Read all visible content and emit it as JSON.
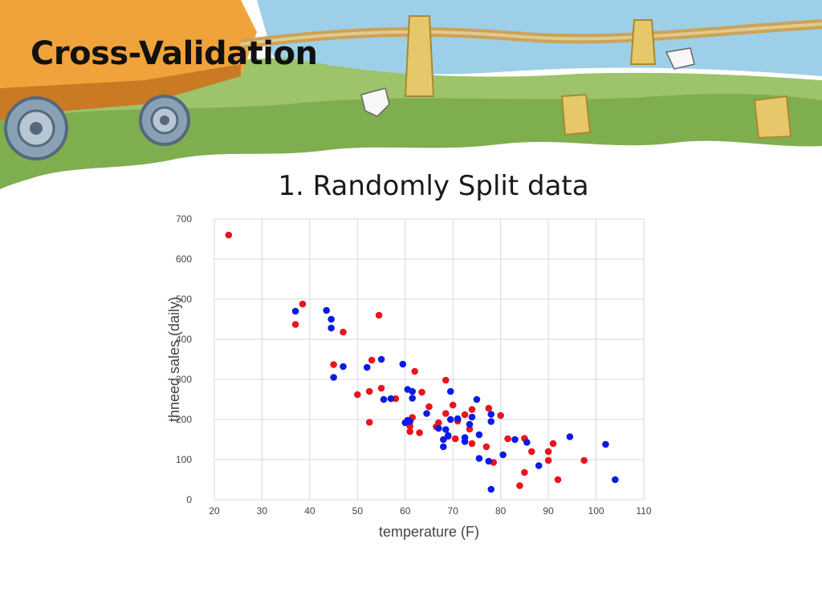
{
  "slide": {
    "title": "Cross-Validation",
    "subtitle": "1. Randomly Split data"
  },
  "colors": {
    "set_a": "#e8141e",
    "set_b": "#0a1be6",
    "grid": "#d9d9d9"
  },
  "chart_data": {
    "type": "scatter",
    "xlabel": "temperature (F)",
    "ylabel": "thneed sales (daily)",
    "xlim": [
      20,
      110
    ],
    "ylim": [
      0,
      700
    ],
    "xticks": [
      20,
      30,
      40,
      50,
      60,
      70,
      80,
      90,
      100,
      110
    ],
    "yticks": [
      0,
      100,
      200,
      300,
      400,
      500,
      600,
      700
    ],
    "grid": true,
    "legend": "none",
    "series": [
      {
        "color": "#e8141e",
        "points": [
          [
            23,
            660
          ],
          [
            37,
            437
          ],
          [
            38.5,
            488
          ],
          [
            45,
            337
          ],
          [
            47,
            418
          ],
          [
            50,
            262
          ],
          [
            52.5,
            270
          ],
          [
            52.5,
            193
          ],
          [
            53,
            348
          ],
          [
            54.5,
            460
          ],
          [
            55,
            278
          ],
          [
            58,
            252
          ],
          [
            61,
            183
          ],
          [
            61,
            170
          ],
          [
            61.5,
            205
          ],
          [
            62,
            320
          ],
          [
            63,
            167
          ],
          [
            63.5,
            268
          ],
          [
            65,
            232
          ],
          [
            66.5,
            182
          ],
          [
            67,
            192
          ],
          [
            68.5,
            298
          ],
          [
            68.5,
            215
          ],
          [
            69,
            158
          ],
          [
            70,
            236
          ],
          [
            70.5,
            152
          ],
          [
            71,
            196
          ],
          [
            72.5,
            212
          ],
          [
            73.5,
            176
          ],
          [
            74,
            225
          ],
          [
            74,
            140
          ],
          [
            77,
            132
          ],
          [
            77.5,
            228
          ],
          [
            78.5,
            93
          ],
          [
            80,
            210
          ],
          [
            81.5,
            152
          ],
          [
            84,
            35
          ],
          [
            85,
            68
          ],
          [
            85,
            153
          ],
          [
            86.5,
            120
          ],
          [
            90,
            120
          ],
          [
            90,
            98
          ],
          [
            91,
            140
          ],
          [
            92,
            50
          ],
          [
            97.5,
            98
          ]
        ]
      },
      {
        "color": "#0a1be6",
        "points": [
          [
            37,
            470
          ],
          [
            43.5,
            472
          ],
          [
            44.5,
            450
          ],
          [
            44.5,
            428
          ],
          [
            45,
            305
          ],
          [
            47,
            332
          ],
          [
            52,
            330
          ],
          [
            55,
            350
          ],
          [
            55.5,
            250
          ],
          [
            57,
            252
          ],
          [
            59.5,
            338
          ],
          [
            60,
            192
          ],
          [
            60.5,
            198
          ],
          [
            60.5,
            275
          ],
          [
            61,
            195
          ],
          [
            61.5,
            270
          ],
          [
            61.5,
            253
          ],
          [
            64.5,
            215
          ],
          [
            67,
            178
          ],
          [
            68,
            150
          ],
          [
            68,
            132
          ],
          [
            68.5,
            175
          ],
          [
            69,
            160
          ],
          [
            69.5,
            270
          ],
          [
            69.5,
            200
          ],
          [
            71,
            202
          ],
          [
            72.5,
            155
          ],
          [
            72.5,
            145
          ],
          [
            73.5,
            188
          ],
          [
            74,
            206
          ],
          [
            75,
            250
          ],
          [
            75.5,
            162
          ],
          [
            75.5,
            103
          ],
          [
            77.5,
            96
          ],
          [
            78,
            213
          ],
          [
            78,
            26
          ],
          [
            78,
            195
          ],
          [
            80.5,
            112
          ],
          [
            83,
            150
          ],
          [
            85.5,
            143
          ],
          [
            88,
            85
          ],
          [
            94.5,
            157
          ],
          [
            102,
            138
          ],
          [
            104,
            50
          ]
        ]
      }
    ]
  }
}
